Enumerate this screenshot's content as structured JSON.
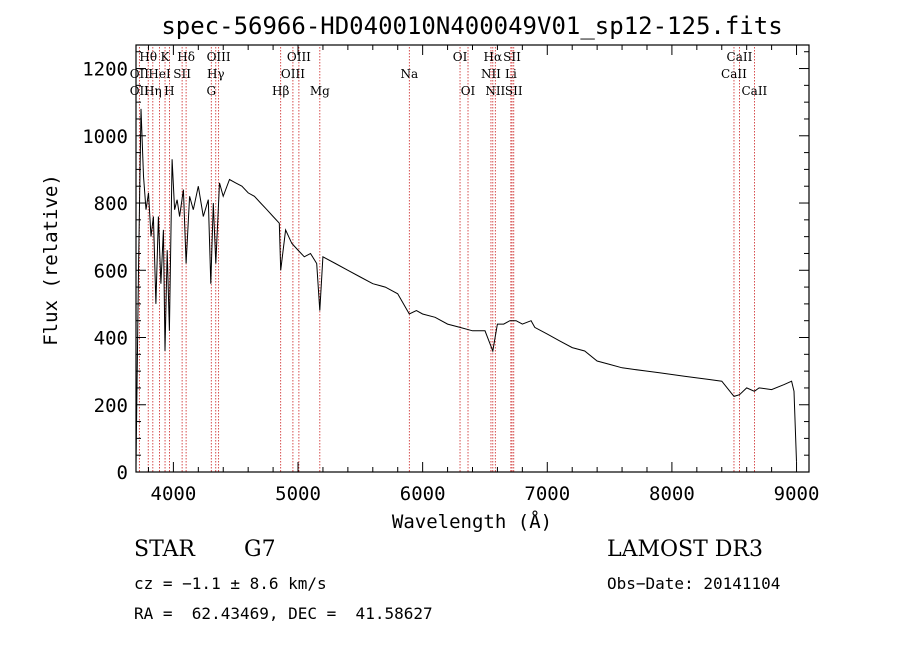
{
  "chart_data": {
    "type": "line",
    "title": "spec-56966-HD040010N400049V01_sp12-125.fits",
    "xlabel": "Wavelength (Å)",
    "ylabel": "Flux (relative)",
    "xlim": [
      3700,
      9100
    ],
    "ylim": [
      0,
      1270
    ],
    "x_ticks": [
      4000,
      5000,
      6000,
      7000,
      8000,
      9000
    ],
    "x_tick_labels": [
      "4000",
      "5000",
      "6000",
      "7000",
      "8000",
      "9000"
    ],
    "y_ticks": [
      0,
      200,
      400,
      600,
      800,
      1000,
      1200
    ],
    "y_tick_labels": [
      "0",
      "200",
      "400",
      "600",
      "800",
      "1000",
      "1200"
    ],
    "grid": false,
    "series": [
      {
        "name": "spectrum",
        "color": "#000000",
        "x": [
          3700,
          3720,
          3740,
          3760,
          3780,
          3800,
          3820,
          3840,
          3860,
          3880,
          3900,
          3920,
          3933,
          3950,
          3968,
          3990,
          4010,
          4030,
          4050,
          4080,
          4102,
          4130,
          4160,
          4200,
          4240,
          4280,
          4300,
          4320,
          4340,
          4370,
          4400,
          4450,
          4500,
          4550,
          4600,
          4650,
          4700,
          4750,
          4800,
          4850,
          4861,
          4900,
          4950,
          5000,
          5050,
          5100,
          5150,
          5175,
          5200,
          5300,
          5400,
          5500,
          5600,
          5700,
          5800,
          5893,
          5950,
          6000,
          6100,
          6200,
          6300,
          6400,
          6500,
          6563,
          6600,
          6650,
          6700,
          6750,
          6800,
          6870,
          6900,
          7000,
          7100,
          7200,
          7300,
          7400,
          7500,
          7600,
          7700,
          7800,
          7900,
          8000,
          8100,
          8200,
          8300,
          8400,
          8498,
          8542,
          8600,
          8662,
          8700,
          8800,
          8900,
          8960,
          8980,
          9000
        ],
        "y": [
          20,
          600,
          1080,
          880,
          780,
          830,
          700,
          760,
          500,
          760,
          560,
          720,
          360,
          660,
          420,
          930,
          780,
          810,
          760,
          840,
          620,
          820,
          780,
          850,
          760,
          810,
          560,
          800,
          620,
          860,
          820,
          870,
          860,
          850,
          830,
          820,
          800,
          780,
          760,
          740,
          600,
          720,
          680,
          660,
          640,
          650,
          620,
          480,
          640,
          620,
          600,
          580,
          560,
          550,
          530,
          470,
          480,
          470,
          460,
          440,
          430,
          420,
          420,
          360,
          440,
          440,
          450,
          450,
          440,
          450,
          430,
          410,
          390,
          370,
          360,
          330,
          320,
          310,
          305,
          300,
          295,
          290,
          285,
          280,
          275,
          270,
          225,
          230,
          250,
          240,
          250,
          245,
          260,
          270,
          240,
          30
        ]
      }
    ],
    "line_markers": [
      {
        "label": "OII",
        "x": 3727,
        "row": 2
      },
      {
        "label": "Hθ",
        "x": 3798,
        "row": 1
      },
      {
        "label": "OII",
        "x": 3727,
        "row": 3
      },
      {
        "label": "Hη",
        "x": 3835,
        "row": 3
      },
      {
        "label": "HeI",
        "x": 3889,
        "row": 2
      },
      {
        "label": "K",
        "x": 3933,
        "row": 1
      },
      {
        "label": "H",
        "x": 3968,
        "row": 3
      },
      {
        "label": "SII",
        "x": 4070,
        "row": 2
      },
      {
        "label": "Hδ",
        "x": 4102,
        "row": 1
      },
      {
        "label": "OIII",
        "x": 4363,
        "row": 1
      },
      {
        "label": "Hγ",
        "x": 4340,
        "row": 2
      },
      {
        "label": "G",
        "x": 4304,
        "row": 3
      },
      {
        "label": "Hβ",
        "x": 4861,
        "row": 3
      },
      {
        "label": "OIII",
        "x": 5007,
        "row": 1
      },
      {
        "label": "OIII",
        "x": 4959,
        "row": 2
      },
      {
        "label": "Mg",
        "x": 5175,
        "row": 3
      },
      {
        "label": "Na",
        "x": 5893,
        "row": 2
      },
      {
        "label": "OI",
        "x": 6300,
        "row": 1
      },
      {
        "label": "OI",
        "x": 6364,
        "row": 3
      },
      {
        "label": "Hα",
        "x": 6563,
        "row": 1
      },
      {
        "label": "NII",
        "x": 6548,
        "row": 2
      },
      {
        "label": "NII",
        "x": 6583,
        "row": 3
      },
      {
        "label": "SII",
        "x": 6717,
        "row": 1
      },
      {
        "label": "Li",
        "x": 6708,
        "row": 2
      },
      {
        "label": "SII",
        "x": 6731,
        "row": 3
      },
      {
        "label": "CaII",
        "x": 8542,
        "row": 1
      },
      {
        "label": "CaII",
        "x": 8498,
        "row": 2
      },
      {
        "label": "CaII",
        "x": 8662,
        "row": 3
      }
    ]
  },
  "info": {
    "object_type": "STAR",
    "subclass": "G7",
    "survey": "LAMOST DR3",
    "cz_text": "cz = −1.1 ± 8.6 km/s",
    "obs_date_text": "Obs−Date: 20141104",
    "radec_text": "RA =  62.43469, DEC =  41.58627"
  },
  "colors": {
    "axis": "#000000",
    "spectrum": "#000000",
    "marker_line": "#cc2222"
  }
}
